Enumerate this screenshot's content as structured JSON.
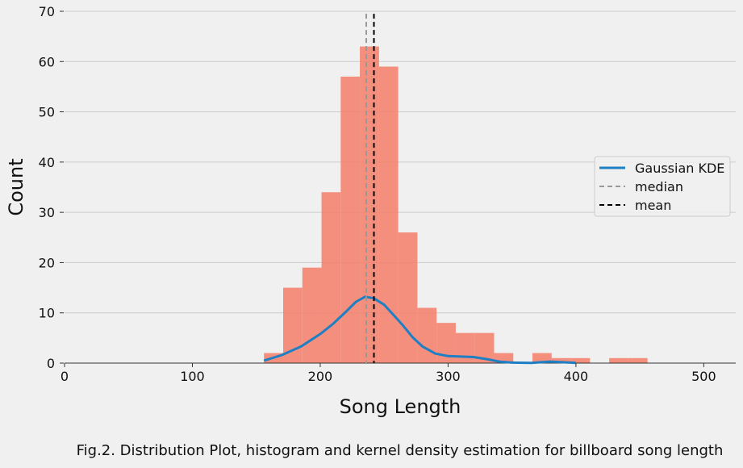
{
  "caption": "Fig.2. Distribution Plot, histogram and kernel density estimation for billboard song length",
  "chart_data": {
    "type": "bar",
    "title": "",
    "xlabel": "Song Length",
    "ylabel": "Count",
    "xlim": [
      0,
      525
    ],
    "ylim": [
      0,
      70
    ],
    "x_ticks": [
      "0",
      "100",
      "200",
      "300",
      "400",
      "500"
    ],
    "y_ticks": [
      "0",
      "10",
      "20",
      "30",
      "40",
      "50",
      "60",
      "70"
    ],
    "grid": "horizontal",
    "legend_position": "center-right",
    "histogram": {
      "bin_edges": [
        156,
        171,
        186,
        201,
        216,
        231,
        246,
        261,
        276,
        291,
        306,
        321,
        336,
        351,
        366,
        381,
        396,
        411,
        426,
        441,
        456
      ],
      "counts": [
        2,
        15,
        19,
        34,
        57,
        63,
        59,
        26,
        11,
        8,
        6,
        6,
        2,
        0,
        2,
        1,
        1,
        0,
        1,
        1
      ],
      "color": "#f47e6a"
    },
    "series": [
      {
        "name": "Gaussian KDE",
        "type": "line",
        "color": "#1f7fc4",
        "x": [
          156,
          170,
          185,
          200,
          210,
          220,
          228,
          235,
          242,
          250,
          258,
          265,
          272,
          280,
          290,
          300,
          310,
          320,
          330,
          340,
          350,
          365,
          380,
          400
        ],
        "y": [
          0.5,
          1.6,
          3.3,
          5.8,
          7.8,
          10.2,
          12.2,
          13.2,
          12.9,
          11.6,
          9.4,
          7.4,
          5.2,
          3.3,
          1.9,
          1.4,
          1.3,
          1.2,
          0.8,
          0.3,
          0.1,
          0.05,
          0.3,
          0.05
        ]
      },
      {
        "name": "median",
        "type": "vline",
        "color": "#999999",
        "x": 236
      },
      {
        "name": "mean",
        "type": "vline",
        "color": "#000000",
        "x": 242
      }
    ]
  }
}
